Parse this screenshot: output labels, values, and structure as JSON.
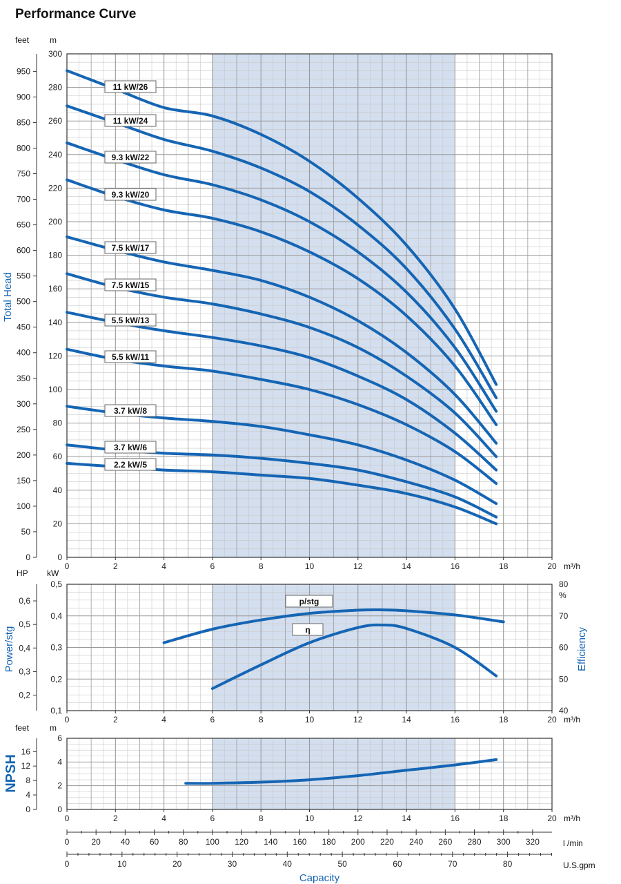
{
  "title": "Performance Curve",
  "colors": {
    "curve": "#1565b4",
    "band": "#d3deee",
    "grid": "#9a9a9a",
    "grid_minor": "#c8c8c8",
    "axis_title": "#1565b4"
  },
  "chart_data": [
    {
      "type": "line",
      "id": "head",
      "ylabel": "Total Head",
      "xunit": "m³/h",
      "yunit_left": "feet",
      "yunit_right": "m",
      "xlim": [
        0,
        20
      ],
      "ylim": [
        0,
        300
      ],
      "feet_ticks": [
        "0",
        "50",
        "100",
        "150",
        "200",
        "250",
        "300",
        "350",
        "400",
        "450",
        "500",
        "550",
        "600",
        "650",
        "700",
        "750",
        "800",
        "850",
        "900",
        "950"
      ],
      "band": [
        6,
        16
      ],
      "series": [
        {
          "name": "11 kW/26",
          "x": [
            0,
            2,
            4,
            6,
            8,
            10,
            12,
            14,
            16,
            17.7
          ],
          "y": [
            290,
            279,
            268,
            263,
            252,
            236,
            214,
            186,
            148,
            103
          ]
        },
        {
          "name": "11 kW/24",
          "x": [
            0,
            2,
            4,
            6,
            8,
            10,
            12,
            14,
            16,
            17.7
          ],
          "y": [
            269,
            259,
            249,
            242,
            232,
            218,
            198,
            172,
            136,
            95
          ]
        },
        {
          "name": "9.3 kW/22",
          "x": [
            0,
            2,
            4,
            6,
            8,
            10,
            12,
            14,
            16,
            17.7
          ],
          "y": [
            247,
            237,
            228,
            222,
            213,
            200,
            182,
            158,
            125,
            87
          ]
        },
        {
          "name": "9.3 kW/20",
          "x": [
            0,
            2,
            4,
            6,
            8,
            10,
            12,
            14,
            16,
            17.7
          ],
          "y": [
            225,
            215,
            207,
            202,
            194,
            182,
            166,
            144,
            114,
            79
          ]
        },
        {
          "name": "7.5 kW/17",
          "x": [
            0,
            2,
            4,
            6,
            8,
            10,
            12,
            14,
            16,
            17.7
          ],
          "y": [
            191,
            183,
            176,
            171,
            165,
            155,
            141,
            122,
            97,
            68
          ]
        },
        {
          "name": "7.5 kW/15",
          "x": [
            0,
            2,
            4,
            6,
            8,
            10,
            12,
            14,
            16,
            17.7
          ],
          "y": [
            169,
            161,
            155,
            151,
            145,
            137,
            125,
            108,
            86,
            60
          ]
        },
        {
          "name": "5.5 kW/13",
          "x": [
            0,
            2,
            4,
            6,
            8,
            10,
            12,
            14,
            16,
            17.7
          ],
          "y": [
            146,
            140,
            135,
            131,
            126,
            119,
            108,
            94,
            74,
            52
          ]
        },
        {
          "name": "5.5 kW/11",
          "x": [
            0,
            2,
            4,
            6,
            8,
            10,
            12,
            14,
            16,
            17.7
          ],
          "y": [
            124,
            118,
            114,
            111,
            106,
            100,
            91,
            79,
            63,
            44
          ]
        },
        {
          "name": "3.7 kW/8",
          "x": [
            0,
            2,
            4,
            6,
            8,
            10,
            12,
            14,
            16,
            17.7
          ],
          "y": [
            90,
            86,
            83,
            81,
            78,
            73,
            67,
            58,
            46,
            32
          ]
        },
        {
          "name": "3.7 kW/6",
          "x": [
            0,
            2,
            4,
            6,
            8,
            10,
            12,
            14,
            16,
            17.7
          ],
          "y": [
            67,
            64,
            62,
            61,
            59,
            56,
            52,
            45,
            36,
            24
          ]
        },
        {
          "name": "2.2 kW/5",
          "x": [
            0,
            2,
            4,
            6,
            8,
            10,
            12,
            14,
            16,
            17.7
          ],
          "y": [
            56,
            54,
            52,
            51,
            49,
            47,
            43,
            38,
            30,
            20
          ]
        }
      ]
    },
    {
      "type": "line",
      "id": "power",
      "ylabel": "Power/stg",
      "y2label": "Efficiency",
      "xunit": "m³/h",
      "yunit_left": "HP",
      "yunit_mid": "kW",
      "yunit_right": "%",
      "xlim": [
        0,
        20
      ],
      "ylim": [
        0.1,
        0.5
      ],
      "y2lim": [
        40,
        80
      ],
      "hp_ticks": [
        "0,2",
        "0,3",
        "0,4",
        "0,5",
        "0,6"
      ],
      "band": [
        6,
        16
      ],
      "series": [
        {
          "name": "p/stg",
          "axis": "kW",
          "x": [
            4,
            6,
            8,
            10,
            12,
            13,
            14,
            16,
            18
          ],
          "y": [
            0.315,
            0.358,
            0.387,
            0.408,
            0.418,
            0.419,
            0.416,
            0.403,
            0.381
          ]
        },
        {
          "name": "η",
          "axis": "%",
          "x": [
            6,
            8,
            10,
            12,
            13,
            14,
            16,
            17.7
          ],
          "y": [
            47,
            54.5,
            61.5,
            66.3,
            67.1,
            66,
            60,
            51
          ]
        }
      ]
    },
    {
      "type": "line",
      "id": "npsh",
      "ylabel": "NPSH",
      "xunit": "m³/h",
      "yunit_left": "feet",
      "yunit_right": "m",
      "xlim": [
        0,
        20
      ],
      "ylim": [
        0,
        6
      ],
      "feet_ticks": [
        "0",
        "4",
        "8",
        "12",
        "16"
      ],
      "band": [
        6,
        16
      ],
      "series": [
        {
          "name": "NPSH",
          "x": [
            4.9,
            6,
            8,
            10,
            12,
            14,
            16,
            17.7
          ],
          "y": [
            2.2,
            2.2,
            2.3,
            2.5,
            2.85,
            3.3,
            3.75,
            4.2
          ]
        }
      ]
    }
  ],
  "capacity_scales": {
    "lmin_unit": "l /min",
    "lmin_ticks": [
      0,
      20,
      40,
      60,
      80,
      100,
      120,
      140,
      160,
      180,
      200,
      220,
      240,
      260,
      280,
      300,
      320
    ],
    "gpm_unit": "U.S.gpm",
    "gpm_ticks": [
      0,
      10,
      20,
      30,
      40,
      50,
      60,
      70,
      80
    ],
    "xlabel": "Capacity"
  }
}
